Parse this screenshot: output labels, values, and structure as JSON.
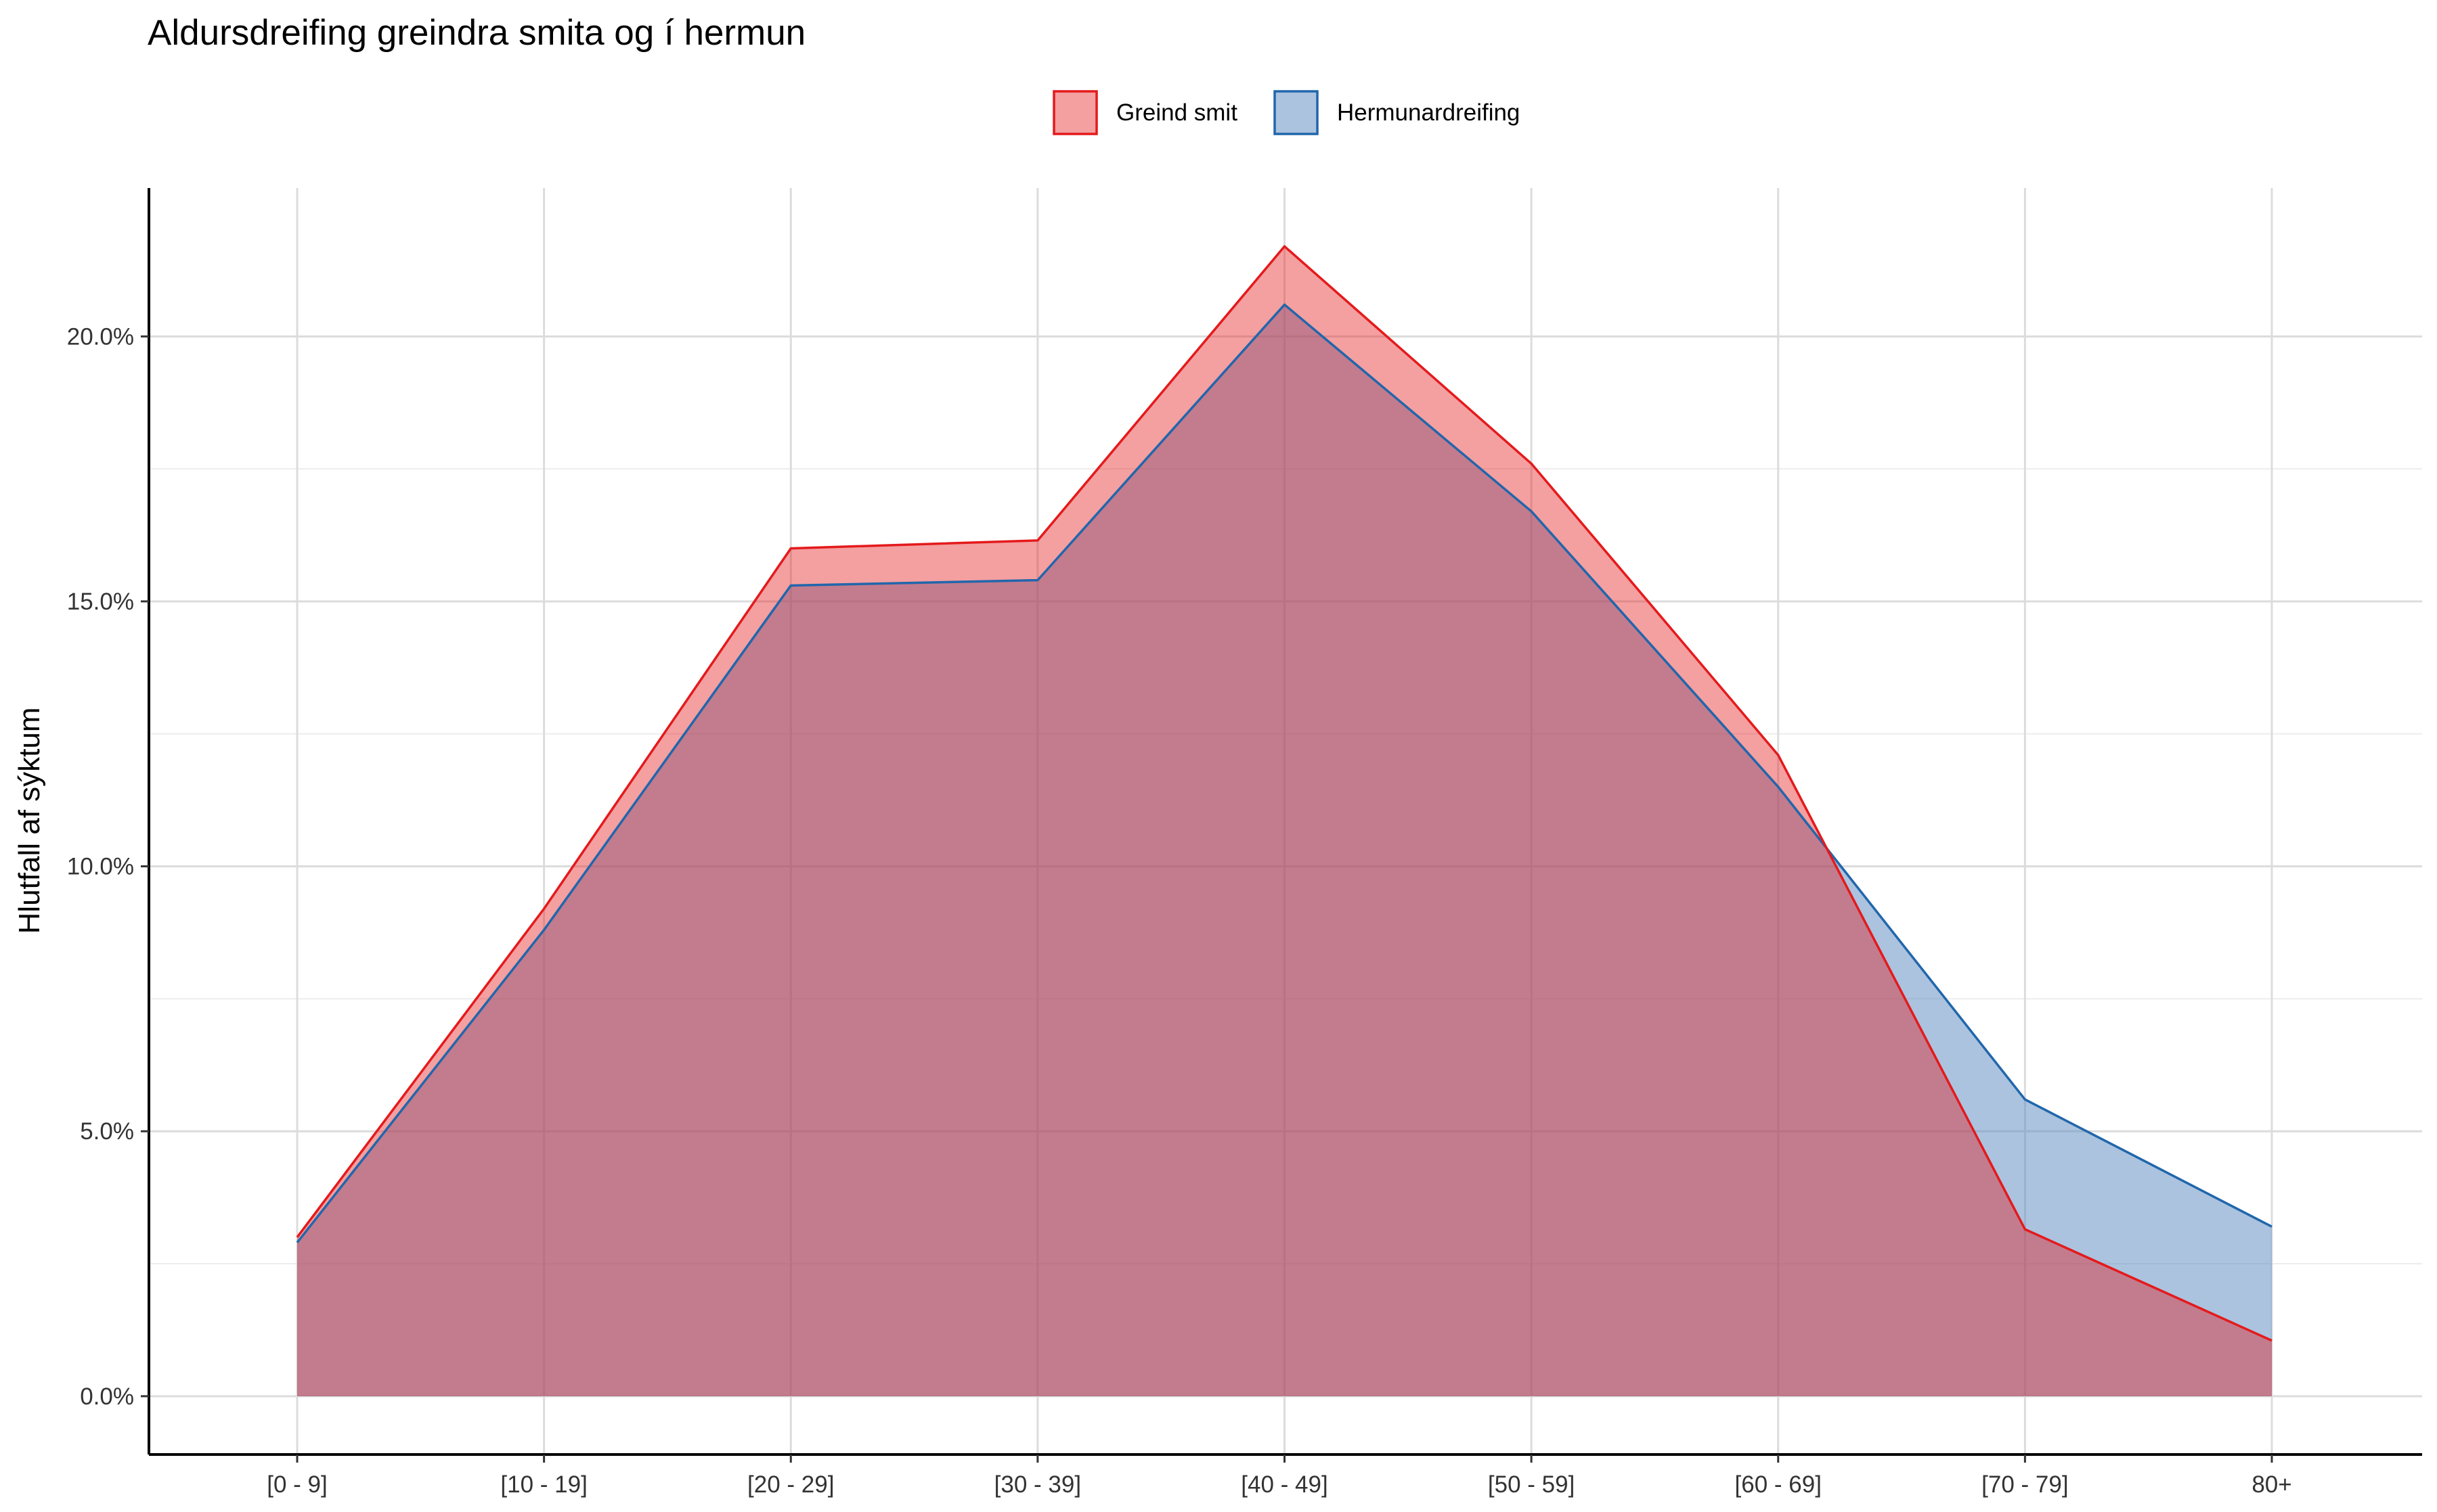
{
  "chart_data": {
    "type": "area",
    "title": "Aldursdreifing greindra smita og í hermun",
    "xlabel": "",
    "ylabel": "Hlutfall af sýktum",
    "categories": [
      "[0 - 9]",
      "[10 - 19]",
      "[20 - 29]",
      "[30 - 39]",
      "[40 - 49]",
      "[50 - 59]",
      "[60 - 69]",
      "[70 - 79]",
      "80+"
    ],
    "series": [
      {
        "name": "Greind smit",
        "values": [
          3.0,
          9.2,
          16.0,
          16.15,
          21.7,
          17.6,
          12.1,
          3.15,
          1.05
        ],
        "line_color": "#e41a1c",
        "fill_color": "#e41a1c"
      },
      {
        "name": "Hermunardreifing",
        "values": [
          2.9,
          8.8,
          15.3,
          15.4,
          20.6,
          16.7,
          11.5,
          5.6,
          3.2
        ],
        "line_color": "#2166ac",
        "fill_color": "#5e8cc0"
      }
    ],
    "ylim": [
      -1.1,
      22.8
    ],
    "yticks": [
      0,
      5,
      10,
      15,
      20
    ],
    "ytick_labels": [
      "0.0%",
      "5.0%",
      "10.0%",
      "15.0%",
      "20.0%"
    ],
    "y_unit": "percent",
    "grid": true,
    "legend_position": "top"
  }
}
